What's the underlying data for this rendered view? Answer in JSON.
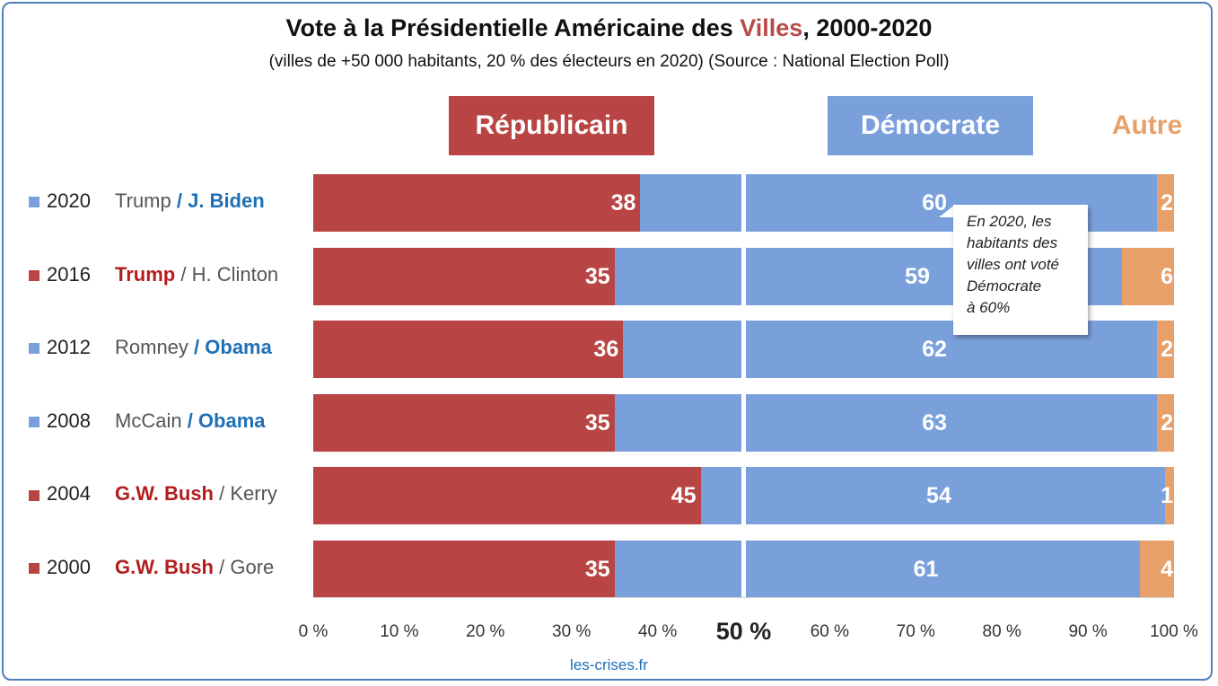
{
  "title_main": "Vote à la Présidentielle Américaine des ",
  "title_highlight": "Villes",
  "title_end": ", 2000-2020",
  "subtitle": "(villes de +50 000 habitants, 20 % des électeurs en 2020) (Source : National Election Poll)",
  "source": "les-crises.fr",
  "colors": {
    "rep": "#b94444",
    "dem": "#7aa0dc",
    "oth": "#e8a06a",
    "win_rep": "#b01e1e",
    "win_dem": "#1f6fb5"
  },
  "annotation": {
    "lines": [
      "En 2020, les",
      "habitants des",
      "villes ont voté",
      "Démocrate",
      "à 60%"
    ]
  },
  "chart_data": {
    "type": "bar",
    "orientation": "horizontal",
    "stacked": true,
    "series": [
      {
        "name": "Républicain",
        "values": [
          38,
          35,
          36,
          35,
          45,
          35
        ]
      },
      {
        "name": "Démocrate",
        "values": [
          60,
          59,
          62,
          63,
          54,
          61
        ]
      },
      {
        "name": "Autre",
        "values": [
          2,
          6,
          2,
          2,
          1,
          4
        ]
      }
    ],
    "categories": [
      "2020",
      "2016",
      "2012",
      "2008",
      "2004",
      "2000"
    ],
    "candidates": [
      {
        "rep": "Trump",
        "dem": "J. Biden",
        "winner": "dem"
      },
      {
        "rep": "Trump",
        "dem": "H. Clinton",
        "winner": "rep"
      },
      {
        "rep": "Romney",
        "dem": "Obama",
        "winner": "dem"
      },
      {
        "rep": "McCain",
        "dem": "Obama",
        "winner": "dem"
      },
      {
        "rep": "G.W. Bush",
        "dem": "Kerry",
        "winner": "rep"
      },
      {
        "rep": "G.W. Bush",
        "dem": "Gore",
        "winner": "rep"
      }
    ],
    "xlim": [
      0,
      100
    ],
    "xticks": [
      "0 %",
      "10 %",
      "20 %",
      "30 %",
      "40 %",
      "50 %",
      "60 %",
      "70 %",
      "80 %",
      "90 %",
      "100 %"
    ],
    "grid": false
  }
}
